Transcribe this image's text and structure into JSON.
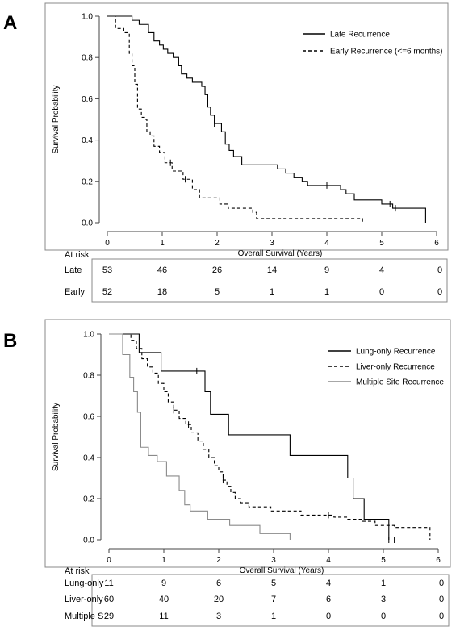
{
  "chart_data": [
    {
      "type": "line",
      "panel_label": "A",
      "xlabel": "Overall Survival (Years)",
      "ylabel": "Survival Probability",
      "xlim": [
        0,
        6
      ],
      "ylim": [
        0,
        1
      ],
      "x_ticks": [
        "0",
        "1",
        "2",
        "3",
        "4",
        "5",
        "6"
      ],
      "y_ticks": [
        "0.0",
        "0.2",
        "0.4",
        "0.6",
        "0.8",
        "1.0"
      ],
      "grid": false,
      "legend_position": "top-right",
      "series": [
        {
          "name": "Late Recurrence",
          "color": "#000000",
          "dash": "solid",
          "steps": [
            [
              0,
              1.0
            ],
            [
              0.45,
              0.98
            ],
            [
              0.58,
              0.96
            ],
            [
              0.75,
              0.92
            ],
            [
              0.85,
              0.88
            ],
            [
              0.95,
              0.86
            ],
            [
              1.02,
              0.84
            ],
            [
              1.1,
              0.82
            ],
            [
              1.2,
              0.8
            ],
            [
              1.3,
              0.76
            ],
            [
              1.35,
              0.72
            ],
            [
              1.45,
              0.7
            ],
            [
              1.55,
              0.68
            ],
            [
              1.72,
              0.66
            ],
            [
              1.78,
              0.62
            ],
            [
              1.83,
              0.56
            ],
            [
              1.88,
              0.52
            ],
            [
              1.95,
              0.48
            ],
            [
              2.08,
              0.44
            ],
            [
              2.15,
              0.38
            ],
            [
              2.22,
              0.35
            ],
            [
              2.3,
              0.32
            ],
            [
              2.45,
              0.28
            ],
            [
              3.1,
              0.26
            ],
            [
              3.25,
              0.24
            ],
            [
              3.4,
              0.22
            ],
            [
              3.55,
              0.2
            ],
            [
              3.65,
              0.18
            ],
            [
              4.25,
              0.16
            ],
            [
              4.35,
              0.14
            ],
            [
              4.5,
              0.11
            ],
            [
              5.0,
              0.09
            ],
            [
              5.2,
              0.07
            ],
            [
              5.8,
              0.0
            ]
          ],
          "end_x": 5.8,
          "censor_x": [
            1.95,
            4.0,
            5.15,
            5.25
          ]
        },
        {
          "name": "Early Recurrence (<=6 months)",
          "color": "#000000",
          "dash": "dashed",
          "steps": [
            [
              0,
              1.0
            ],
            [
              0.15,
              0.94
            ],
            [
              0.3,
              0.92
            ],
            [
              0.4,
              0.82
            ],
            [
              0.45,
              0.76
            ],
            [
              0.5,
              0.67
            ],
            [
              0.55,
              0.55
            ],
            [
              0.62,
              0.51
            ],
            [
              0.7,
              0.5
            ],
            [
              0.72,
              0.44
            ],
            [
              0.78,
              0.42
            ],
            [
              0.85,
              0.37
            ],
            [
              0.95,
              0.34
            ],
            [
              1.05,
              0.29
            ],
            [
              1.18,
              0.25
            ],
            [
              1.38,
              0.21
            ],
            [
              1.55,
              0.16
            ],
            [
              1.68,
              0.12
            ],
            [
              2.05,
              0.09
            ],
            [
              2.2,
              0.07
            ],
            [
              2.65,
              0.05
            ],
            [
              2.72,
              0.02
            ],
            [
              4.65,
              0.0
            ]
          ],
          "end_x": 4.65,
          "censor_x": [
            1.15,
            1.42
          ]
        }
      ],
      "risk_table": {
        "title": "At risk",
        "rows": [
          {
            "label": "Late",
            "values": [
              "53",
              "46",
              "26",
              "14",
              "9",
              "4",
              "0"
            ]
          },
          {
            "label": "Early",
            "values": [
              "52",
              "18",
              "5",
              "1",
              "1",
              "0",
              "0"
            ]
          }
        ]
      }
    },
    {
      "type": "line",
      "panel_label": "B",
      "xlabel": "Overall Survival (Years)",
      "ylabel": "Survival Probability",
      "xlim": [
        0,
        6
      ],
      "ylim": [
        0,
        1
      ],
      "x_ticks": [
        "0",
        "1",
        "2",
        "3",
        "4",
        "5",
        "6"
      ],
      "y_ticks": [
        "0.0",
        "0.2",
        "0.4",
        "0.6",
        "0.8",
        "1.0"
      ],
      "grid": false,
      "legend_position": "top-right",
      "series": [
        {
          "name": "Lung-only Recurrence",
          "color": "#000000",
          "dash": "solid",
          "steps": [
            [
              0,
              1.0
            ],
            [
              0.55,
              0.91
            ],
            [
              0.95,
              0.82
            ],
            [
              1.75,
              0.72
            ],
            [
              1.85,
              0.61
            ],
            [
              2.18,
              0.51
            ],
            [
              3.3,
              0.41
            ],
            [
              4.35,
              0.3
            ],
            [
              4.45,
              0.2
            ],
            [
              4.65,
              0.1
            ],
            [
              5.1,
              0.0
            ]
          ],
          "end_x": 5.1,
          "censor_x": [
            1.6,
            5.1,
            5.2
          ]
        },
        {
          "name": "Liver-only Recurrence",
          "color": "#000000",
          "dash": "dashed",
          "steps": [
            [
              0,
              1.0
            ],
            [
              0.4,
              0.97
            ],
            [
              0.5,
              0.93
            ],
            [
              0.6,
              0.88
            ],
            [
              0.7,
              0.84
            ],
            [
              0.8,
              0.81
            ],
            [
              0.9,
              0.76
            ],
            [
              1.0,
              0.72
            ],
            [
              1.08,
              0.67
            ],
            [
              1.18,
              0.63
            ],
            [
              1.28,
              0.59
            ],
            [
              1.4,
              0.56
            ],
            [
              1.5,
              0.52
            ],
            [
              1.62,
              0.48
            ],
            [
              1.72,
              0.44
            ],
            [
              1.82,
              0.4
            ],
            [
              1.92,
              0.36
            ],
            [
              2.0,
              0.33
            ],
            [
              2.08,
              0.29
            ],
            [
              2.15,
              0.26
            ],
            [
              2.22,
              0.23
            ],
            [
              2.3,
              0.2
            ],
            [
              2.4,
              0.18
            ],
            [
              2.55,
              0.16
            ],
            [
              2.95,
              0.14
            ],
            [
              3.5,
              0.12
            ],
            [
              4.1,
              0.11
            ],
            [
              4.35,
              0.1
            ],
            [
              4.6,
              0.09
            ],
            [
              4.85,
              0.07
            ],
            [
              5.2,
              0.06
            ],
            [
              5.85,
              0.0
            ]
          ],
          "end_x": 5.85,
          "censor_x": [
            1.18,
            1.45,
            2.08,
            4.0
          ]
        },
        {
          "name": "Multiple Site Recurrence",
          "color": "#8a8a8a",
          "dash": "solid",
          "steps": [
            [
              0,
              1.0
            ],
            [
              0.25,
              0.9
            ],
            [
              0.38,
              0.79
            ],
            [
              0.45,
              0.72
            ],
            [
              0.52,
              0.62
            ],
            [
              0.58,
              0.45
            ],
            [
              0.72,
              0.41
            ],
            [
              0.88,
              0.38
            ],
            [
              1.05,
              0.31
            ],
            [
              1.28,
              0.24
            ],
            [
              1.38,
              0.17
            ],
            [
              1.48,
              0.14
            ],
            [
              1.8,
              0.1
            ],
            [
              2.2,
              0.07
            ],
            [
              2.75,
              0.03
            ],
            [
              3.3,
              0.0
            ]
          ],
          "end_x": 3.3,
          "censor_x": []
        }
      ],
      "risk_table": {
        "title": "At risk",
        "rows": [
          {
            "label": "Lung-only",
            "values": [
              "11",
              "9",
              "6",
              "5",
              "4",
              "1",
              "0"
            ]
          },
          {
            "label": "Liver-only",
            "values": [
              "60",
              "40",
              "20",
              "7",
              "6",
              "3",
              "0"
            ]
          },
          {
            "label": "Multiple S",
            "values": [
              "29",
              "11",
              "3",
              "1",
              "0",
              "0",
              "0"
            ]
          }
        ]
      }
    }
  ]
}
